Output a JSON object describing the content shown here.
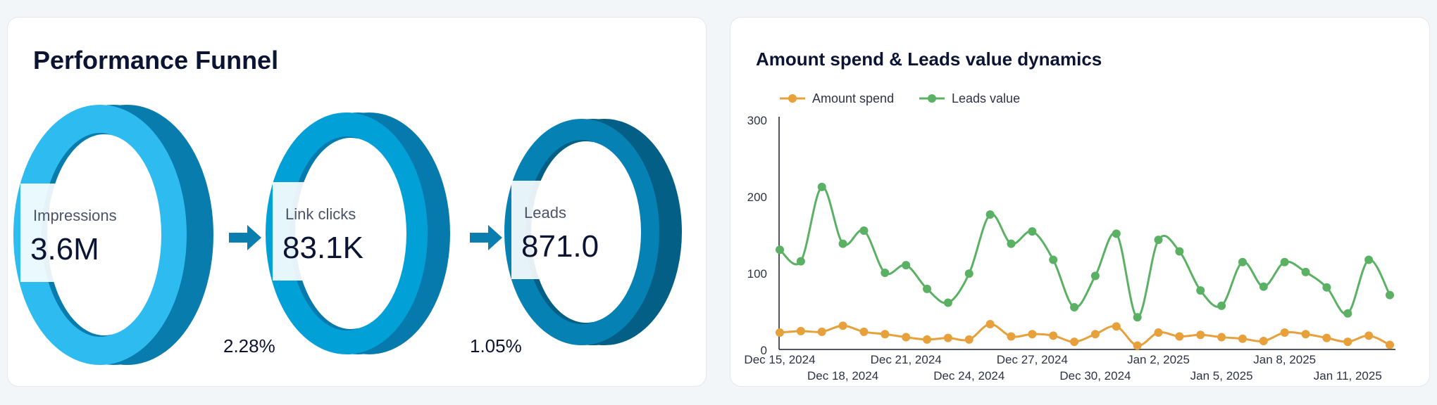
{
  "funnel": {
    "title": "Performance Funnel",
    "stages": [
      {
        "label": "Impressions",
        "value": "3.6M",
        "front": "#2ebcf0",
        "side": "#087cad"
      },
      {
        "label": "Link clicks",
        "value": "83.1K",
        "front": "#01a0d6",
        "side": "#0679ad"
      },
      {
        "label": "Leads",
        "value": "871.0",
        "front": "#0581b3",
        "side": "#035f85"
      }
    ],
    "rates": [
      "2.28%",
      "1.05%"
    ],
    "arrow_color": "#0b7eb0",
    "arrow_icon": "right-arrow-icon"
  },
  "chart": {
    "title": "Amount spend & Leads value dynamics"
  },
  "chart_data": {
    "type": "line",
    "title": "Amount spend & Leads value dynamics",
    "xlabel": "",
    "ylabel": "",
    "ylim": [
      0,
      300
    ],
    "yticks": [
      0,
      100,
      200,
      300
    ],
    "grid": false,
    "legend": "top-left",
    "x": [
      "2024-12-15",
      "2024-12-16",
      "2024-12-17",
      "2024-12-18",
      "2024-12-19",
      "2024-12-20",
      "2024-12-21",
      "2024-12-22",
      "2024-12-23",
      "2024-12-24",
      "2024-12-25",
      "2024-12-26",
      "2024-12-27",
      "2024-12-28",
      "2024-12-29",
      "2024-12-30",
      "2024-12-31",
      "2025-01-01",
      "2025-01-02",
      "2025-01-03",
      "2025-01-04",
      "2025-01-05",
      "2025-01-06",
      "2025-01-07",
      "2025-01-08",
      "2025-01-09",
      "2025-01-10",
      "2025-01-11",
      "2025-01-12",
      "2025-01-13"
    ],
    "xtick_labels": [
      {
        "date": "2024-12-15",
        "label": "Dec 15, 2024",
        "row": 0
      },
      {
        "date": "2024-12-18",
        "label": "Dec 18, 2024",
        "row": 1
      },
      {
        "date": "2024-12-21",
        "label": "Dec 21, 2024",
        "row": 0
      },
      {
        "date": "2024-12-24",
        "label": "Dec 24, 2024",
        "row": 1
      },
      {
        "date": "2024-12-27",
        "label": "Dec 27, 2024",
        "row": 0
      },
      {
        "date": "2024-12-30",
        "label": "Dec 30, 2024",
        "row": 1
      },
      {
        "date": "2025-01-02",
        "label": "Jan 2, 2025",
        "row": 0
      },
      {
        "date": "2025-01-05",
        "label": "Jan 5, 2025",
        "row": 1
      },
      {
        "date": "2025-01-08",
        "label": "Jan 8, 2025",
        "row": 0
      },
      {
        "date": "2025-01-11",
        "label": "Jan 11, 2025",
        "row": 1
      }
    ],
    "series": [
      {
        "name": "Amount spend",
        "color": "#e8a03a",
        "values": [
          22,
          24,
          23,
          31,
          23,
          20,
          16,
          13,
          15,
          13,
          33,
          17,
          20,
          18,
          10,
          20,
          30,
          5,
          22,
          17,
          19,
          16,
          14,
          11,
          22,
          20,
          15,
          10,
          18,
          6
        ]
      },
      {
        "name": "Leads value",
        "color": "#5ab164",
        "values": [
          130,
          115,
          212,
          138,
          155,
          100,
          110,
          79,
          61,
          99,
          176,
          138,
          154,
          117,
          55,
          96,
          151,
          42,
          143,
          128,
          77,
          57,
          114,
          82,
          114,
          101,
          81,
          47,
          117,
          71
        ]
      }
    ]
  }
}
